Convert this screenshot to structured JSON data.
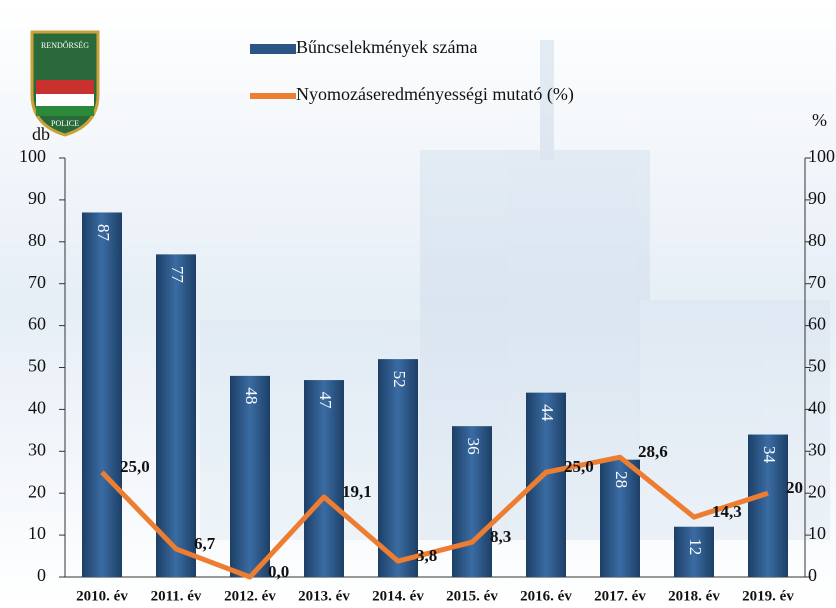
{
  "logo": [
    "RENDŐRSÉG",
    "POLICE"
  ],
  "chart_data": {
    "type": "bar",
    "y_label": "db",
    "y2_label": "%",
    "categories": [
      "2010. év",
      "2011. év",
      "2012. év",
      "2013. év",
      "2014. év",
      "2015. év",
      "2016. év",
      "2017. év",
      "2018. év",
      "2019. év"
    ],
    "series": [
      {
        "name": "Bűncselekmények száma",
        "type": "bar",
        "color": "#2b5584",
        "values": [
          87,
          77,
          48,
          47,
          52,
          36,
          44,
          28,
          12,
          34
        ]
      },
      {
        "name": "Nyomozáseredményességi mutató (%)",
        "type": "line",
        "axis": "y2",
        "color": "#ed7d31",
        "values": [
          25.0,
          6.7,
          0.0,
          19.1,
          3.8,
          8.3,
          25.0,
          28.6,
          14.3,
          20
        ],
        "value_labels": [
          "25,0",
          "6,7",
          "0,0",
          "19,1",
          "3,8",
          "8,3",
          "25,0",
          "28,6",
          "14,3",
          "20"
        ]
      }
    ],
    "ylim": [
      0,
      100
    ],
    "yticks": [
      0,
      10,
      20,
      30,
      40,
      50,
      60,
      70,
      80,
      90,
      100
    ],
    "y2lim": [
      0,
      100
    ],
    "y2ticks": [
      0,
      10,
      20,
      30,
      40,
      50,
      60,
      70,
      80,
      90,
      100
    ]
  }
}
